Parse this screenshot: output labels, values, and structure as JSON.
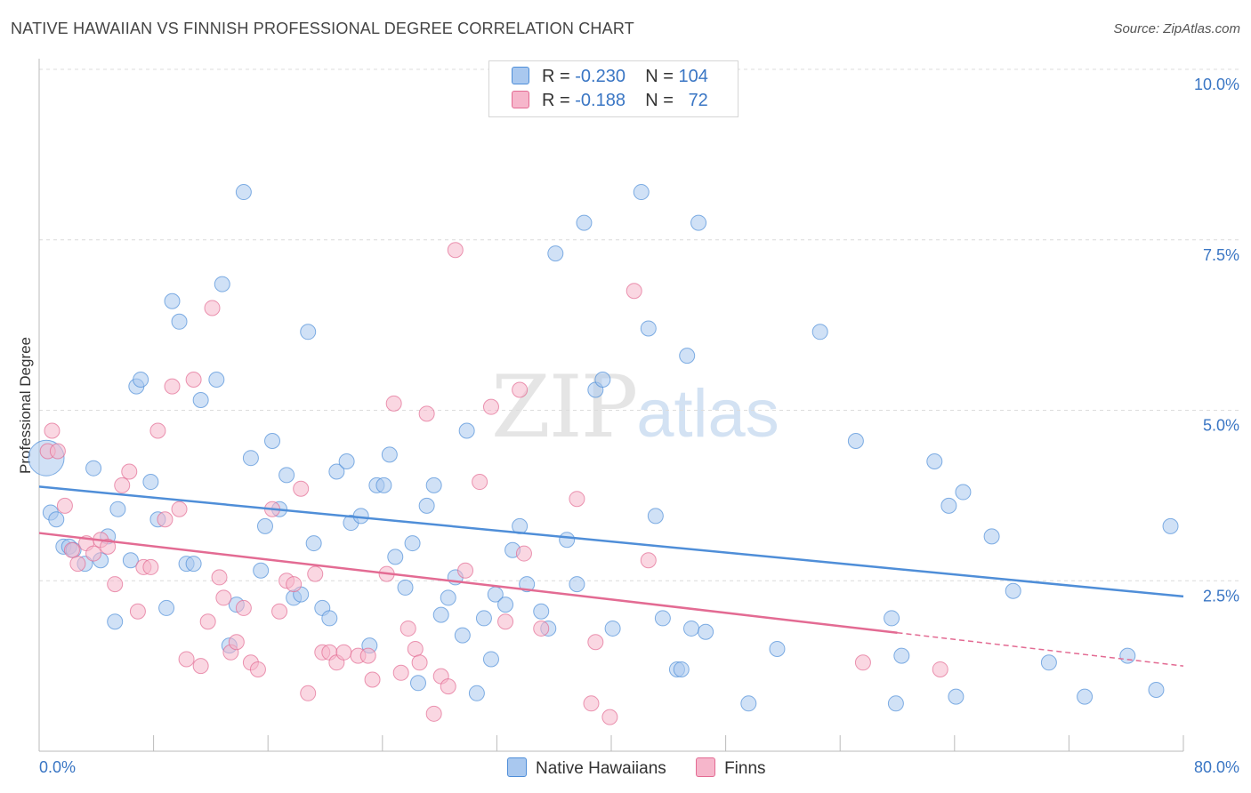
{
  "title": "NATIVE HAWAIIAN VS FINNISH PROFESSIONAL DEGREE CORRELATION CHART",
  "source": "Source: ZipAtlas.com",
  "watermark": {
    "zip": "ZIP",
    "atlas": "atlas"
  },
  "legend_top": [
    {
      "r_label": "R =",
      "r_value": "-0.230",
      "n_label": "N =",
      "n_value": "104",
      "color": "#a9c8ef"
    },
    {
      "r_label": "R =",
      "r_value": "-0.188",
      "n_label": "N =",
      "n_value": "72",
      "color": "#f6b6cb"
    }
  ],
  "legend_bottom": [
    {
      "label": "Native Hawaiians",
      "color": "#a9c8ef"
    },
    {
      "label": "Finns",
      "color": "#f6b6cb"
    }
  ],
  "chart_data": {
    "type": "scatter",
    "title": "NATIVE HAWAIIAN VS FINNISH PROFESSIONAL DEGREE CORRELATION CHART",
    "xlabel": "",
    "ylabel": "Professional Degree",
    "xlim": [
      0,
      80
    ],
    "ylim": [
      0,
      10
    ],
    "x_tick_labels": [
      "0.0%",
      "80.0%"
    ],
    "y_ticks": [
      2.5,
      5.0,
      7.5,
      10.0
    ],
    "y_tick_labels": [
      "2.5%",
      "5.0%",
      "7.5%",
      "10.0%"
    ],
    "grid": "horizontal dashed",
    "series": [
      {
        "name": "Native Hawaiians",
        "color": "#4f8ed8",
        "fill": "#a9c8ef",
        "trend": {
          "x": [
            0,
            80
          ],
          "y": [
            3.88,
            2.27
          ]
        },
        "points": [
          [
            0.5,
            4.3
          ],
          [
            0.8,
            3.5
          ],
          [
            1.2,
            3.4
          ],
          [
            1.7,
            3.0
          ],
          [
            2.1,
            3.0
          ],
          [
            2.4,
            2.95
          ],
          [
            3.2,
            2.75
          ],
          [
            3.8,
            4.15
          ],
          [
            4.3,
            2.8
          ],
          [
            4.8,
            3.15
          ],
          [
            5.3,
            1.9
          ],
          [
            5.5,
            3.55
          ],
          [
            6.4,
            2.8
          ],
          [
            6.8,
            5.35
          ],
          [
            7.1,
            5.45
          ],
          [
            7.8,
            3.95
          ],
          [
            8.3,
            3.4
          ],
          [
            8.9,
            2.1
          ],
          [
            9.3,
            6.6
          ],
          [
            9.8,
            6.3
          ],
          [
            10.3,
            2.75
          ],
          [
            10.8,
            2.75
          ],
          [
            11.3,
            5.15
          ],
          [
            12.4,
            5.45
          ],
          [
            12.8,
            6.85
          ],
          [
            13.3,
            1.55
          ],
          [
            13.8,
            2.15
          ],
          [
            14.3,
            8.2
          ],
          [
            14.8,
            4.3
          ],
          [
            15.5,
            2.65
          ],
          [
            15.8,
            3.3
          ],
          [
            16.3,
            4.55
          ],
          [
            16.8,
            3.55
          ],
          [
            17.3,
            4.05
          ],
          [
            17.8,
            2.25
          ],
          [
            18.3,
            2.3
          ],
          [
            18.8,
            6.15
          ],
          [
            19.2,
            3.05
          ],
          [
            19.8,
            2.1
          ],
          [
            20.3,
            1.95
          ],
          [
            20.8,
            4.1
          ],
          [
            21.5,
            4.25
          ],
          [
            21.8,
            3.35
          ],
          [
            22.5,
            3.45
          ],
          [
            23.1,
            1.55
          ],
          [
            23.6,
            3.9
          ],
          [
            24.1,
            3.9
          ],
          [
            24.5,
            4.35
          ],
          [
            24.9,
            2.85
          ],
          [
            25.6,
            2.4
          ],
          [
            26.1,
            3.05
          ],
          [
            26.5,
            1.0
          ],
          [
            27.1,
            3.6
          ],
          [
            27.6,
            3.9
          ],
          [
            28.1,
            2.0
          ],
          [
            28.6,
            2.25
          ],
          [
            29.1,
            2.55
          ],
          [
            29.6,
            1.7
          ],
          [
            29.9,
            4.7
          ],
          [
            30.6,
            0.85
          ],
          [
            31.1,
            1.95
          ],
          [
            31.6,
            1.35
          ],
          [
            31.9,
            2.3
          ],
          [
            32.6,
            2.15
          ],
          [
            33.1,
            2.95
          ],
          [
            33.6,
            3.3
          ],
          [
            34.1,
            2.45
          ],
          [
            35.1,
            2.05
          ],
          [
            35.6,
            1.8
          ],
          [
            36.1,
            7.3
          ],
          [
            36.9,
            3.1
          ],
          [
            37.6,
            2.45
          ],
          [
            38.1,
            7.75
          ],
          [
            38.9,
            5.3
          ],
          [
            39.4,
            5.45
          ],
          [
            40.1,
            1.8
          ],
          [
            42.1,
            8.2
          ],
          [
            42.6,
            6.2
          ],
          [
            43.1,
            3.45
          ],
          [
            43.6,
            1.95
          ],
          [
            44.6,
            1.2
          ],
          [
            44.9,
            1.2
          ],
          [
            45.3,
            5.8
          ],
          [
            45.6,
            1.8
          ],
          [
            46.1,
            7.75
          ],
          [
            46.6,
            1.75
          ],
          [
            49.6,
            0.7
          ],
          [
            51.6,
            1.5
          ],
          [
            54.6,
            6.15
          ],
          [
            57.1,
            4.55
          ],
          [
            59.6,
            1.95
          ],
          [
            59.9,
            0.7
          ],
          [
            60.3,
            1.4
          ],
          [
            62.6,
            4.25
          ],
          [
            63.6,
            3.6
          ],
          [
            64.1,
            0.8
          ],
          [
            64.6,
            3.8
          ],
          [
            66.6,
            3.15
          ],
          [
            68.1,
            2.35
          ],
          [
            70.6,
            1.3
          ],
          [
            73.1,
            0.8
          ],
          [
            76.1,
            1.4
          ],
          [
            78.1,
            0.9
          ],
          [
            79.1,
            3.3
          ]
        ]
      },
      {
        "name": "Finns",
        "color": "#e36b93",
        "fill": "#f6b6cb",
        "trend": {
          "x": [
            0,
            80
          ],
          "y": [
            3.2,
            1.25
          ]
        },
        "points": [
          [
            0.6,
            4.4
          ],
          [
            0.9,
            4.7
          ],
          [
            1.3,
            4.4
          ],
          [
            1.8,
            3.6
          ],
          [
            2.3,
            2.95
          ],
          [
            2.7,
            2.75
          ],
          [
            3.3,
            3.05
          ],
          [
            3.8,
            2.9
          ],
          [
            4.3,
            3.1
          ],
          [
            4.8,
            3.0
          ],
          [
            5.3,
            2.45
          ],
          [
            5.8,
            3.9
          ],
          [
            6.3,
            4.1
          ],
          [
            6.9,
            2.05
          ],
          [
            7.3,
            2.7
          ],
          [
            7.8,
            2.7
          ],
          [
            8.3,
            4.7
          ],
          [
            8.8,
            3.4
          ],
          [
            9.3,
            5.35
          ],
          [
            9.8,
            3.55
          ],
          [
            10.3,
            1.35
          ],
          [
            10.8,
            5.45
          ],
          [
            11.3,
            1.25
          ],
          [
            11.8,
            1.9
          ],
          [
            12.1,
            6.5
          ],
          [
            12.6,
            2.55
          ],
          [
            12.9,
            2.25
          ],
          [
            13.4,
            1.45
          ],
          [
            13.8,
            1.6
          ],
          [
            14.3,
            2.1
          ],
          [
            14.8,
            1.3
          ],
          [
            15.3,
            1.2
          ],
          [
            16.3,
            3.55
          ],
          [
            16.8,
            2.05
          ],
          [
            17.3,
            2.5
          ],
          [
            17.8,
            2.45
          ],
          [
            18.3,
            3.85
          ],
          [
            18.8,
            0.85
          ],
          [
            19.3,
            2.6
          ],
          [
            19.8,
            1.45
          ],
          [
            20.3,
            1.45
          ],
          [
            20.8,
            1.3
          ],
          [
            21.3,
            1.45
          ],
          [
            22.3,
            1.4
          ],
          [
            23.0,
            1.4
          ],
          [
            23.3,
            1.05
          ],
          [
            24.3,
            2.6
          ],
          [
            24.8,
            5.1
          ],
          [
            25.3,
            1.15
          ],
          [
            25.8,
            1.8
          ],
          [
            26.3,
            1.5
          ],
          [
            26.6,
            1.3
          ],
          [
            27.1,
            4.95
          ],
          [
            27.6,
            0.55
          ],
          [
            28.1,
            1.1
          ],
          [
            28.6,
            0.95
          ],
          [
            29.1,
            7.35
          ],
          [
            29.8,
            2.65
          ],
          [
            30.8,
            3.95
          ],
          [
            31.6,
            5.05
          ],
          [
            32.6,
            1.9
          ],
          [
            33.6,
            5.3
          ],
          [
            33.9,
            2.9
          ],
          [
            35.1,
            1.8
          ],
          [
            37.6,
            3.7
          ],
          [
            38.6,
            0.7
          ],
          [
            38.9,
            1.6
          ],
          [
            39.9,
            0.5
          ],
          [
            41.6,
            6.75
          ],
          [
            42.6,
            2.8
          ],
          [
            57.6,
            1.3
          ],
          [
            63.0,
            1.2
          ]
        ]
      }
    ]
  }
}
